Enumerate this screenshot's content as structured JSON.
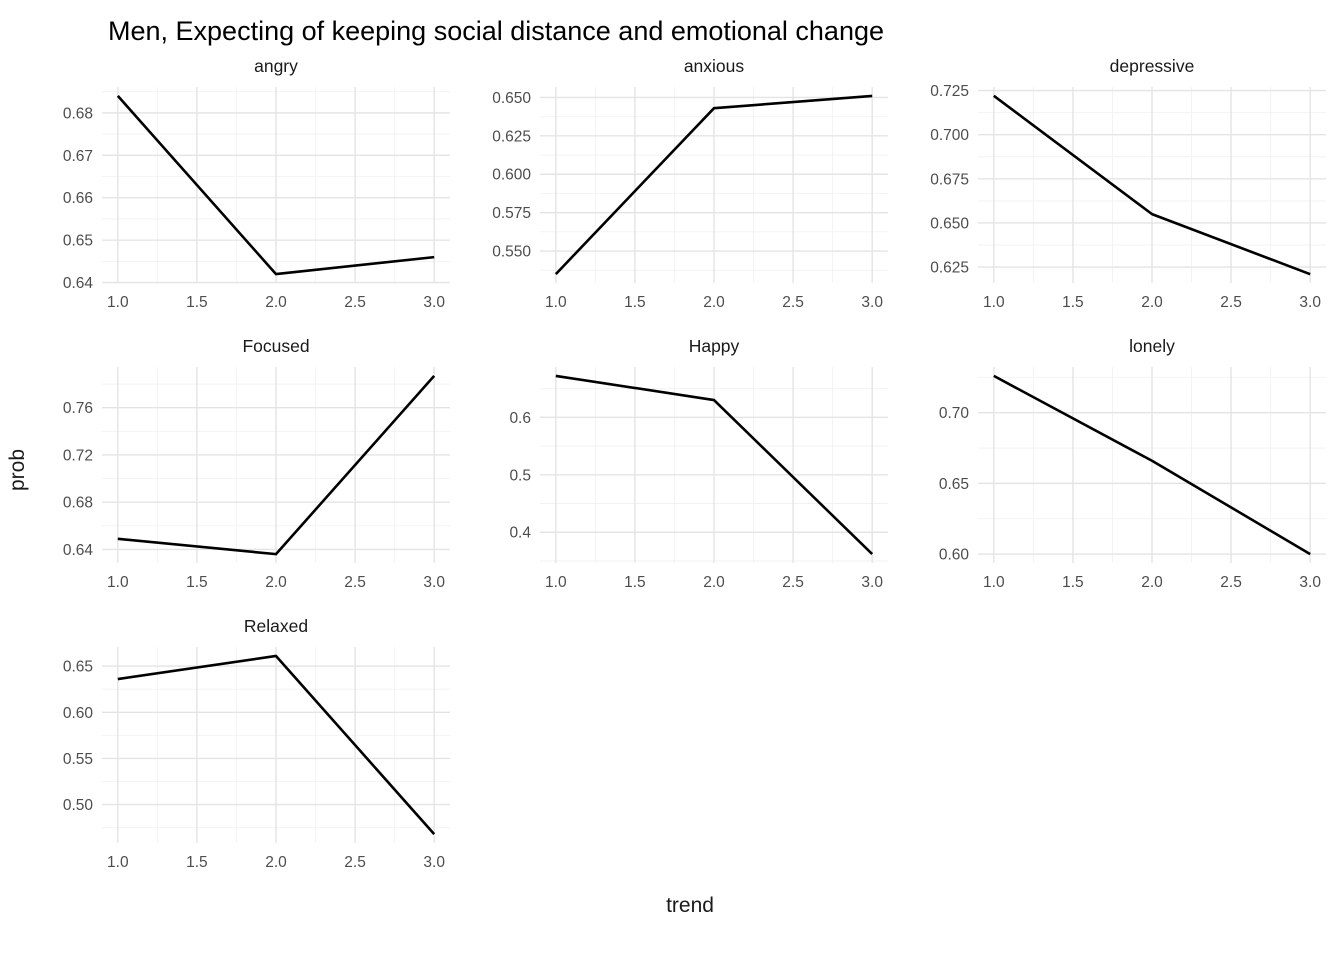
{
  "title": "Men, Expecting of keeping social distance and emotional change",
  "xlabel": "trend",
  "ylabel": "prob",
  "colors": {
    "line": "#000000",
    "grid_major": "#e4e4e4",
    "grid_minor": "#f2f2f2",
    "tick_label": "#4d4d4d",
    "background": "#ffffff"
  },
  "layout": {
    "facet_grid": "3 columns x 3 rows, 7 panels",
    "gridlines": "major and minor, light gray on white",
    "legend": "none",
    "line_style": "solid black"
  },
  "chart_data": [
    {
      "type": "line",
      "title": "angry",
      "x": [
        1,
        2,
        3
      ],
      "y": [
        0.684,
        0.642,
        0.646
      ],
      "xlim": [
        0.9,
        3.1
      ],
      "ylim": [
        0.6399,
        0.6861
      ],
      "xtick_values": [
        1.0,
        1.5,
        2.0,
        2.5,
        3.0
      ],
      "xtick_labels": [
        "1.0",
        "1.5",
        "2.0",
        "2.5",
        "3.0"
      ],
      "ytick_values": [
        0.64,
        0.65,
        0.66,
        0.67,
        0.68
      ],
      "ytick_labels": [
        "0.64",
        "0.65",
        "0.66",
        "0.67",
        "0.68"
      ]
    },
    {
      "type": "line",
      "title": "anxious",
      "x": [
        1,
        2,
        3
      ],
      "y": [
        0.535,
        0.643,
        0.651
      ],
      "xlim": [
        0.9,
        3.1
      ],
      "ylim": [
        0.5292,
        0.6568
      ],
      "xtick_values": [
        1.0,
        1.5,
        2.0,
        2.5,
        3.0
      ],
      "xtick_labels": [
        "1.0",
        "1.5",
        "2.0",
        "2.5",
        "3.0"
      ],
      "ytick_values": [
        0.55,
        0.575,
        0.6,
        0.625,
        0.65
      ],
      "ytick_labels": [
        "0.550",
        "0.575",
        "0.600",
        "0.625",
        "0.650"
      ]
    },
    {
      "type": "line",
      "title": "depressive",
      "x": [
        1,
        2,
        3
      ],
      "y": [
        0.722,
        0.655,
        0.621
      ],
      "xlim": [
        0.9,
        3.1
      ],
      "ylim": [
        0.616,
        0.727
      ],
      "xtick_values": [
        1.0,
        1.5,
        2.0,
        2.5,
        3.0
      ],
      "xtick_labels": [
        "1.0",
        "1.5",
        "2.0",
        "2.5",
        "3.0"
      ],
      "ytick_values": [
        0.625,
        0.65,
        0.675,
        0.7,
        0.725
      ],
      "ytick_labels": [
        "0.625",
        "0.650",
        "0.675",
        "0.700",
        "0.725"
      ]
    },
    {
      "type": "line",
      "title": "Focused",
      "x": [
        1,
        2,
        3
      ],
      "y": [
        0.649,
        0.636,
        0.787
      ],
      "xlim": [
        0.9,
        3.1
      ],
      "ylim": [
        0.6285,
        0.7945
      ],
      "xtick_values": [
        1.0,
        1.5,
        2.0,
        2.5,
        3.0
      ],
      "xtick_labels": [
        "1.0",
        "1.5",
        "2.0",
        "2.5",
        "3.0"
      ],
      "ytick_values": [
        0.64,
        0.68,
        0.72,
        0.76
      ],
      "ytick_labels": [
        "0.64",
        "0.68",
        "0.72",
        "0.76"
      ]
    },
    {
      "type": "line",
      "title": "Happy",
      "x": [
        1,
        2,
        3
      ],
      "y": [
        0.672,
        0.63,
        0.362
      ],
      "xlim": [
        0.9,
        3.1
      ],
      "ylim": [
        0.3465,
        0.6875
      ],
      "xtick_values": [
        1.0,
        1.5,
        2.0,
        2.5,
        3.0
      ],
      "xtick_labels": [
        "1.0",
        "1.5",
        "2.0",
        "2.5",
        "3.0"
      ],
      "ytick_values": [
        0.4,
        0.5,
        0.6
      ],
      "ytick_labels": [
        "0.4",
        "0.5",
        "0.6"
      ]
    },
    {
      "type": "line",
      "title": "lonely",
      "x": [
        1,
        2,
        3
      ],
      "y": [
        0.726,
        0.666,
        0.6
      ],
      "xlim": [
        0.9,
        3.1
      ],
      "ylim": [
        0.5937,
        0.7323
      ],
      "xtick_values": [
        1.0,
        1.5,
        2.0,
        2.5,
        3.0
      ],
      "xtick_labels": [
        "1.0",
        "1.5",
        "2.0",
        "2.5",
        "3.0"
      ],
      "ytick_values": [
        0.6,
        0.65,
        0.7
      ],
      "ytick_labels": [
        "0.60",
        "0.65",
        "0.70"
      ]
    },
    {
      "type": "line",
      "title": "Relaxed",
      "x": [
        1,
        2,
        3
      ],
      "y": [
        0.636,
        0.661,
        0.468
      ],
      "xlim": [
        0.9,
        3.1
      ],
      "ylim": [
        0.4584,
        0.6707
      ],
      "xtick_values": [
        1.0,
        1.5,
        2.0,
        2.5,
        3.0
      ],
      "xtick_labels": [
        "1.0",
        "1.5",
        "2.0",
        "2.5",
        "3.0"
      ],
      "ytick_values": [
        0.5,
        0.55,
        0.6,
        0.65
      ],
      "ytick_labels": [
        "0.50",
        "0.55",
        "0.60",
        "0.65"
      ]
    }
  ]
}
